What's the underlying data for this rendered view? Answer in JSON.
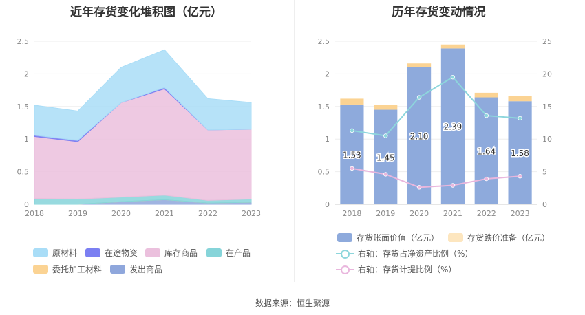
{
  "left_chart": {
    "title": "近年存货变化堆积图（亿元）",
    "legend": [
      {
        "label": "原材料",
        "color": "#a9ddf7"
      },
      {
        "label": "在途物资",
        "color": "#7b7ff2"
      },
      {
        "label": "库存商品",
        "color": "#ebc0dd"
      },
      {
        "label": "在产品",
        "color": "#86d4d9"
      },
      {
        "label": "委托加工材料",
        "color": "#fbd393"
      },
      {
        "label": "发出商品",
        "color": "#8fa7dc"
      }
    ]
  },
  "right_chart": {
    "title": "历年存货变动情况",
    "legend": [
      {
        "label": "存货账面价值（亿元）",
        "color": "#8eaadc"
      },
      {
        "label": "存货跌价准备（亿元）",
        "color": "#fde6bf"
      },
      {
        "label": "右轴：存货占净资产比例（%）",
        "color": "#8dd6dc"
      },
      {
        "label": "右轴：存货计提比例（%）",
        "color": "#e9b6dd"
      }
    ]
  },
  "source": "数据来源：恒生聚源",
  "chart_data": [
    {
      "type": "area",
      "stacked": true,
      "title": "近年存货变化堆积图（亿元）",
      "x": [
        "2018",
        "2019",
        "2020",
        "2021",
        "2022",
        "2023"
      ],
      "ylim": [
        0,
        2.5
      ],
      "yticks": [
        "0",
        "0.5",
        "1",
        "1.5",
        "2",
        "2.5"
      ],
      "grid": true,
      "legend_position": "bottom",
      "series": [
        {
          "name": "发出商品",
          "color": "#8fa7dc",
          "values": [
            0.0,
            0.0,
            0.04,
            0.07,
            0.02,
            0.03
          ]
        },
        {
          "name": "委托加工材料",
          "color": "#fbd393",
          "values": [
            0.0,
            0.0,
            0.0,
            0.0,
            0.0,
            0.0
          ]
        },
        {
          "name": "在产品",
          "color": "#86d4d9",
          "values": [
            0.09,
            0.08,
            0.07,
            0.07,
            0.04,
            0.05
          ]
        },
        {
          "name": "库存商品",
          "color": "#ebc0dd",
          "values": [
            0.95,
            0.88,
            1.45,
            1.63,
            1.08,
            1.07
          ]
        },
        {
          "name": "在途物资",
          "color": "#7b7ff2",
          "values": [
            0.02,
            0.02,
            0.0,
            0.02,
            0.0,
            0.0
          ]
        },
        {
          "name": "原材料",
          "color": "#a9ddf7",
          "values": [
            0.46,
            0.45,
            0.54,
            0.58,
            0.48,
            0.41
          ]
        }
      ]
    },
    {
      "type": "bar",
      "stacked": true,
      "title": "历年存货变动情况",
      "categories": [
        "2018",
        "2019",
        "2020",
        "2021",
        "2022",
        "2023"
      ],
      "ylim": [
        0,
        2.5
      ],
      "yticks": [
        "0",
        "0.5",
        "1",
        "1.5",
        "2",
        "2.5"
      ],
      "y2lim": [
        0,
        25
      ],
      "y2ticks": [
        "0",
        "5",
        "10",
        "15",
        "20",
        "25"
      ],
      "grid": true,
      "legend_position": "bottom",
      "series": [
        {
          "name": "存货账面价值（亿元）",
          "type": "bar",
          "color": "#8eaadc",
          "values": [
            1.53,
            1.45,
            2.1,
            2.39,
            1.64,
            1.58
          ],
          "labels": [
            "1.53",
            "1.45",
            "2.10",
            "2.39",
            "1.64",
            "1.58"
          ]
        },
        {
          "name": "存货跌价准备（亿元）",
          "type": "bar",
          "color": "#fbd393",
          "values": [
            0.09,
            0.07,
            0.06,
            0.06,
            0.07,
            0.08
          ]
        },
        {
          "name": "右轴：存货占净资产比例（%）",
          "type": "line",
          "axis": "right",
          "color": "#8dd6dc",
          "values": [
            11.3,
            10.5,
            16.4,
            19.5,
            13.6,
            13.2
          ]
        },
        {
          "name": "右轴：存货计提比例（%）",
          "type": "line",
          "axis": "right",
          "color": "#e9b6dd",
          "values": [
            5.5,
            4.6,
            2.6,
            2.9,
            3.9,
            4.3
          ]
        }
      ]
    }
  ]
}
